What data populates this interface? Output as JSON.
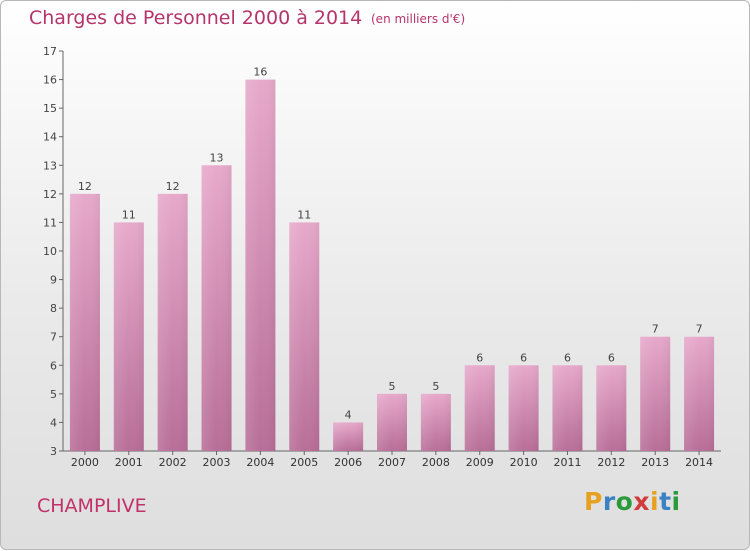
{
  "header": {
    "title": "Charges de Personnel 2000 à 2014",
    "subtitle": "(en milliers d'€)"
  },
  "footer": {
    "commune": "CHAMPLIVE",
    "logo_letters": [
      "P",
      "r",
      "o",
      "x",
      "i",
      "t",
      "i"
    ],
    "logo_colors": [
      "#e8a020",
      "#3b82c4",
      "#2a9a3c",
      "#d23b3b",
      "#e8a020",
      "#3b82c4",
      "#2a9a3c"
    ]
  },
  "chart_data": {
    "type": "bar",
    "categories": [
      "2000",
      "2001",
      "2002",
      "2003",
      "2004",
      "2005",
      "2006",
      "2007",
      "2008",
      "2009",
      "2010",
      "2011",
      "2012",
      "2013",
      "2014"
    ],
    "values": [
      12,
      11,
      12,
      13,
      16,
      11,
      4,
      5,
      5,
      6,
      6,
      6,
      6,
      7,
      7
    ],
    "data_labels": [
      "12",
      "11",
      "12",
      "13",
      "16",
      "11",
      "4",
      "5",
      "5",
      "6",
      "6",
      "6",
      "6",
      "7",
      "7"
    ],
    "ylim": [
      3,
      17
    ],
    "yticks": [
      3,
      4,
      5,
      6,
      7,
      8,
      9,
      10,
      11,
      12,
      13,
      14,
      15,
      16,
      17
    ],
    "grid": false,
    "bar_color": "#d98cb6"
  }
}
